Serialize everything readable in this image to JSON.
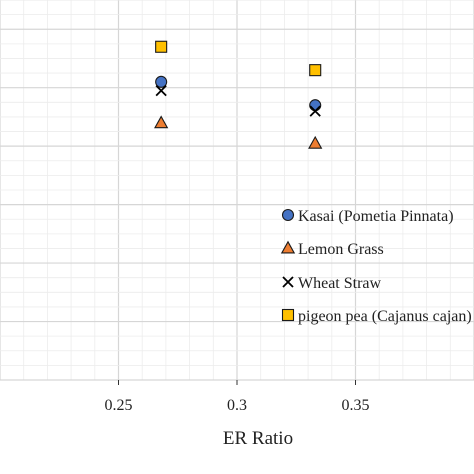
{
  "chart_data": {
    "type": "scatter",
    "title": "",
    "xlabel": "ER Ratio",
    "ylabel": "",
    "xlim": [
      0.2,
      0.4
    ],
    "ylim": [
      0,
      6.5
    ],
    "x_ticks": [
      0.25,
      0.3,
      0.35
    ],
    "x_tick_labels": [
      "0.25",
      "0.3",
      "0.35"
    ],
    "grid": true,
    "legend_position": "right",
    "series": [
      {
        "name": "Kasai (Pometia Pinnata)",
        "marker": "circle",
        "color": "#4472C4",
        "x": [
          0.268,
          0.333
        ],
        "y": [
          5.1,
          4.7
        ]
      },
      {
        "name": "Lemon Grass",
        "marker": "triangle",
        "color": "#ED7D31",
        "x": [
          0.268,
          0.333
        ],
        "y": [
          4.4,
          4.05
        ]
      },
      {
        "name": "Wheat Straw",
        "marker": "x",
        "color": "#000000",
        "x": [
          0.268,
          0.333
        ],
        "y": [
          4.95,
          4.6
        ]
      },
      {
        "name": "pigeon pea (Cajanus cajan)",
        "marker": "square",
        "color": "#FFC000",
        "x": [
          0.268,
          0.333
        ],
        "y": [
          5.7,
          5.3
        ]
      }
    ]
  }
}
